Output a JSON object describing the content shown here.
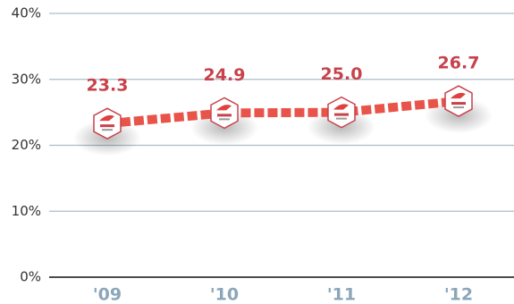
{
  "chart_data": {
    "type": "line",
    "categories": [
      "'09",
      "'10",
      "'11",
      "'12"
    ],
    "values": [
      23.3,
      24.9,
      25.0,
      26.7
    ],
    "value_labels": [
      "23.3",
      "24.9",
      "25.0",
      "26.7"
    ],
    "color": "#e8534a",
    "ylim": [
      0,
      40
    ],
    "yticks": [
      {
        "value": 0,
        "label": "0%"
      },
      {
        "value": 10,
        "label": "10%"
      },
      {
        "value": 20,
        "label": "20%"
      },
      {
        "value": 30,
        "label": "30%"
      },
      {
        "value": 40,
        "label": "40%"
      }
    ],
    "grid": true
  }
}
